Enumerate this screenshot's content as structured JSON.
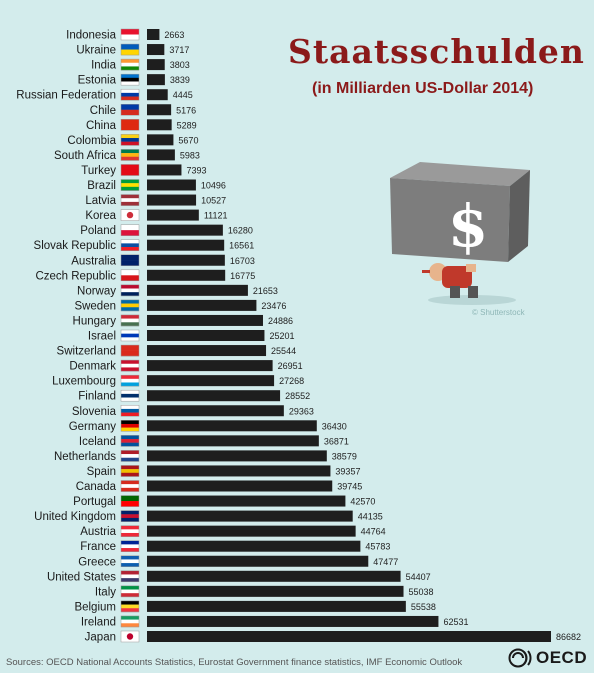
{
  "title": "Staatsschulden",
  "subtitle": "(in Milliarden US-Dollar 2014)",
  "source": "Sources: OECD National Accounts Statistics, Eurostat Government finance statistics, IMF Economic Outlook",
  "logo_text": "OECD",
  "watermark": "© Shutterstock",
  "colors": {
    "background": "#d3ecec",
    "bar": "#1e1e1e",
    "title": "#8b1a1a"
  },
  "chart_data": {
    "type": "bar",
    "orientation": "horizontal",
    "categories": [
      "Indonesia",
      "Ukraine",
      "India",
      "Estonia",
      "Russian Federation",
      "Chile",
      "China",
      "Colombia",
      "South Africa",
      "Turkey",
      "Brazil",
      "Latvia",
      "Korea",
      "Poland",
      "Slovak Republic",
      "Australia",
      "Czech Republic",
      "Norway",
      "Sweden",
      "Hungary",
      "Israel",
      "Switzerland",
      "Denmark",
      "Luxembourg",
      "Finland",
      "Slovenia",
      "Germany",
      "Iceland",
      "Netherlands",
      "Spain",
      "Canada",
      "Portugal",
      "United Kingdom",
      "Austria",
      "France",
      "Greece",
      "United States",
      "Italy",
      "Belgium",
      "Ireland",
      "Japan"
    ],
    "values": [
      2663,
      3717,
      3803,
      3839,
      4445,
      5176,
      5289,
      5670,
      5983,
      7393,
      10496,
      10527,
      11121,
      16280,
      16561,
      16703,
      16775,
      21653,
      23476,
      24886,
      25201,
      25544,
      26951,
      27268,
      28552,
      29363,
      36430,
      36871,
      38579,
      39357,
      39745,
      42570,
      44135,
      44764,
      45783,
      47477,
      54407,
      55038,
      55538,
      62531,
      86682
    ],
    "title": "Staatsschulden",
    "subtitle": "(in Milliarden US-Dollar 2014)",
    "xlabel": "",
    "ylabel": "",
    "grid": false
  }
}
